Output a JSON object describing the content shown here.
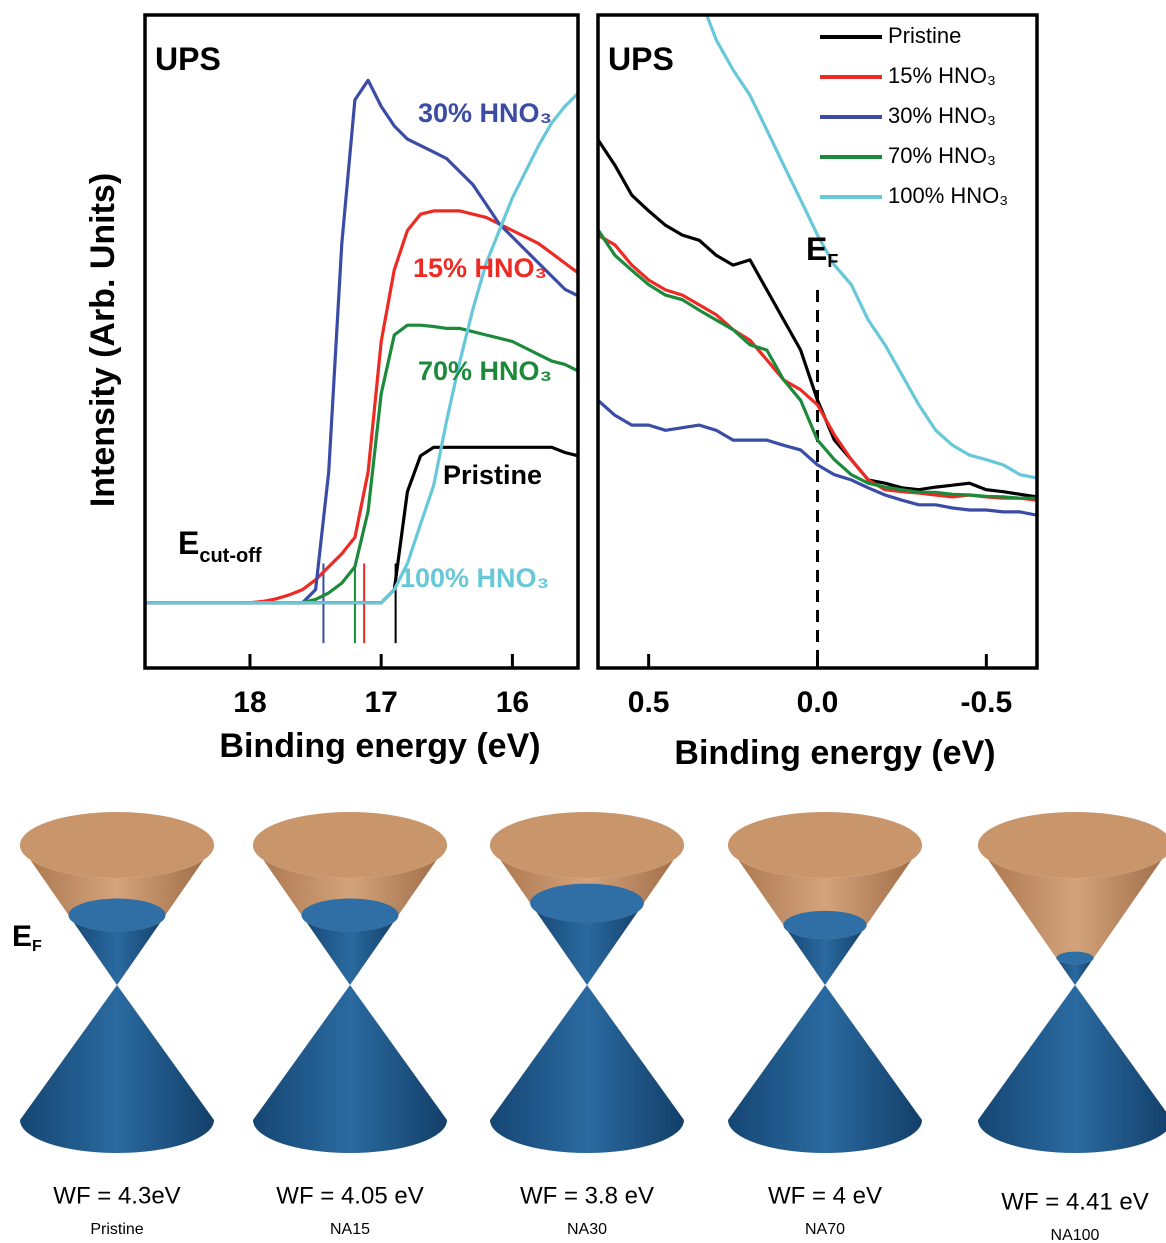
{
  "chart_data": [
    {
      "type": "line",
      "xlabel": "Binding energy (eV)",
      "ylabel": "Intensity (Arb. Units)",
      "x": [
        18.8,
        18.7,
        18.6,
        18.5,
        18.4,
        18.3,
        18.2,
        18.1,
        18.0,
        17.9,
        17.8,
        17.7,
        17.6,
        17.5,
        17.4,
        17.3,
        17.2,
        17.1,
        17.0,
        16.9,
        16.8,
        16.7,
        16.6,
        16.5,
        16.4,
        16.3,
        16.2,
        16.1,
        16.0,
        15.9,
        15.8,
        15.7,
        15.6,
        15.5
      ],
      "xlim": [
        18.8,
        15.5
      ],
      "xticks": [
        18,
        17,
        16
      ],
      "ylim": [
        0,
        100
      ],
      "legend": "none",
      "series": [
        {
          "name": "Pristine",
          "color": "#000000",
          "values": [
            10,
            10,
            10,
            10,
            10,
            10,
            10,
            10,
            10,
            10,
            10,
            10,
            10,
            10,
            10,
            10,
            10,
            10,
            10,
            12,
            27,
            32.5,
            33.8,
            33.8,
            33.8,
            33.8,
            33.8,
            33.8,
            33.8,
            33.8,
            33.8,
            33.8,
            33,
            32.5
          ]
        },
        {
          "name": "15% HNO₃",
          "color": "#ee2a24",
          "values": [
            10,
            10,
            10,
            10,
            10,
            10,
            10,
            10,
            10,
            10.2,
            10.6,
            11.2,
            12,
            13.5,
            15.5,
            17.5,
            20,
            30,
            50,
            61,
            67,
            69.5,
            70,
            70,
            70,
            69.5,
            69,
            68,
            67,
            66,
            65,
            63.5,
            62,
            60.5
          ]
        },
        {
          "name": "30% HNO₃",
          "color": "#3a4ca5",
          "values": [
            10,
            10,
            10,
            10,
            10,
            10,
            10,
            10,
            10,
            10,
            10,
            10,
            10,
            12,
            30,
            65,
            87,
            90,
            86,
            83,
            81,
            80,
            79,
            78,
            76,
            74,
            71,
            68,
            66,
            64,
            62,
            60,
            58,
            57
          ]
        },
        {
          "name": "70% HNO₃",
          "color": "#1c8a3a",
          "values": [
            10,
            10,
            10,
            10,
            10,
            10,
            10,
            10,
            10,
            10,
            10,
            10,
            10,
            10.5,
            11.5,
            13,
            15.5,
            24,
            42,
            51,
            52.5,
            52.5,
            52.3,
            52,
            52,
            51.5,
            51,
            50.5,
            50,
            49,
            48,
            47,
            46.5,
            45.5
          ]
        },
        {
          "name": "100% HNO₃",
          "color": "#66c8d8",
          "values": [
            10,
            10,
            10,
            10,
            10,
            10,
            10,
            10,
            10,
            10,
            10,
            10,
            10,
            10,
            10,
            10,
            10,
            10,
            10,
            12,
            16,
            22,
            28,
            38,
            47,
            55,
            62,
            67,
            72,
            76,
            80,
            83.5,
            86,
            88
          ]
        }
      ],
      "cutoffs": [
        {
          "x": 17.44,
          "color": "#3a4ca5"
        },
        {
          "x": 17.2,
          "color": "#1c8a3a"
        },
        {
          "x": 17.13,
          "color": "#ee2a24"
        },
        {
          "x": 16.89,
          "color": "#000000"
        }
      ],
      "annotations": [
        {
          "text": "UPS"
        },
        {
          "text": "E",
          "sub": "cut-off"
        }
      ]
    },
    {
      "type": "line",
      "xlabel": "Binding energy (eV)",
      "x": [
        0.65,
        0.6,
        0.55,
        0.5,
        0.45,
        0.4,
        0.35,
        0.3,
        0.25,
        0.2,
        0.15,
        0.1,
        0.05,
        0,
        -0.05,
        -0.1,
        -0.15,
        -0.2,
        -0.25,
        -0.3,
        -0.35,
        -0.4,
        -0.45,
        -0.5,
        -0.55,
        -0.6,
        -0.65
      ],
      "xlim": [
        0.65,
        -0.65
      ],
      "xticks": [
        0.5,
        {
          "value": 0,
          "label": "0.0"
        },
        -0.5
      ],
      "ylim": [
        0,
        100
      ],
      "legend": "upper right",
      "series": [
        {
          "name": "Pristine",
          "color": "#000000",
          "values": [
            80.9,
            77,
            72.4,
            70,
            67.8,
            66.3,
            65.5,
            63.2,
            61.7,
            62.5,
            57.9,
            53.3,
            48.7,
            41,
            34.9,
            31.9,
            28.8,
            28.3,
            27.6,
            27.3,
            27.7,
            28,
            28.3,
            27.3,
            27,
            26.6,
            26.2
          ]
        },
        {
          "name": "15% HNO₃",
          "color": "#ee2a24",
          "values": [
            66.3,
            64.8,
            61.7,
            59.4,
            57.9,
            57.1,
            55.6,
            54.1,
            51.8,
            50.2,
            47.2,
            44.1,
            42.6,
            40.3,
            35.7,
            31.9,
            28.8,
            27.3,
            27,
            26.8,
            26.5,
            26.2,
            26.5,
            26.2,
            26,
            26,
            25.7
          ]
        },
        {
          "name": "30% HNO₃",
          "color": "#3a4ca5",
          "values": [
            41,
            38.7,
            37.2,
            37.2,
            36.4,
            36.8,
            37.2,
            36.4,
            34.9,
            34.9,
            34.9,
            34.1,
            33.4,
            31.1,
            29.6,
            28.8,
            27.6,
            26.5,
            25.7,
            25,
            25,
            24.5,
            24.2,
            24.2,
            23.9,
            23.9,
            23.4
          ]
        },
        {
          "name": "70% HNO₃",
          "color": "#1c8a3a",
          "values": [
            67.1,
            63.2,
            60.9,
            58.7,
            57.1,
            56.4,
            54.8,
            53.3,
            51.8,
            49.5,
            48.7,
            44.1,
            41,
            34.9,
            31.9,
            29.6,
            28.3,
            27.7,
            27.3,
            26.9,
            26.9,
            26.6,
            26.5,
            26.3,
            26.2,
            26,
            26
          ]
        },
        {
          "name": "100% HNO₃",
          "color": "#66c8d8",
          "values": [
            null,
            null,
            null,
            null,
            null,
            null,
            103,
            96.2,
            91.6,
            87.7,
            82.4,
            77,
            71.7,
            66.3,
            61.7,
            58.7,
            53.3,
            49.5,
            44.9,
            40.3,
            36.4,
            34.1,
            32.6,
            31.9,
            31.1,
            29.6,
            29.1
          ]
        }
      ],
      "ef_line": 0,
      "annotations": [
        {
          "text": "UPS"
        },
        {
          "text": "E",
          "sub": "F"
        }
      ]
    }
  ],
  "cones": {
    "ef_label": {
      "text": "E",
      "sub": "F"
    },
    "items": [
      {
        "wf": "WF = 4.3eV",
        "name": "Pristine"
      },
      {
        "wf": "WF = 4.05 eV",
        "name": "NA15"
      },
      {
        "wf": "WF = 3.8 eV",
        "name": "NA30"
      },
      {
        "wf": "WF = 4 eV",
        "name": "NA70"
      },
      {
        "wf": "WF = 4.41 eV",
        "name": "NA100"
      }
    ]
  }
}
